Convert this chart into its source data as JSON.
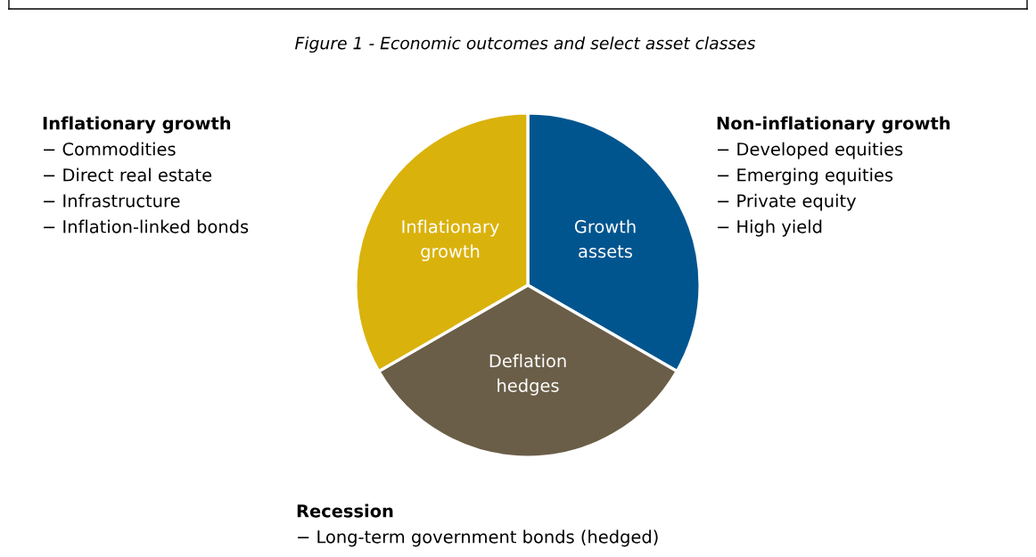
{
  "chart_data": {
    "type": "pie",
    "title": "Figure 1 - Economic outcomes and select asset classes",
    "categories": [
      "Growth\nassets",
      "Deflation\nhedges",
      "Inflationary\ngrowth"
    ],
    "values": [
      33.33,
      33.33,
      33.34
    ],
    "colors": [
      "#00558f",
      "#6b5e48",
      "#dab20c"
    ],
    "annotations": [
      "Inflationary growth\n− Commodities\n− Direct real estate\n− Infrastructure\n− Inflation-linked bonds",
      "Non-inflationary growth\n− Developed equities\n− Emerging equities\n− Private equity\n− High yield",
      "Recession\n− Long-term government bonds (hedged)"
    ]
  }
}
